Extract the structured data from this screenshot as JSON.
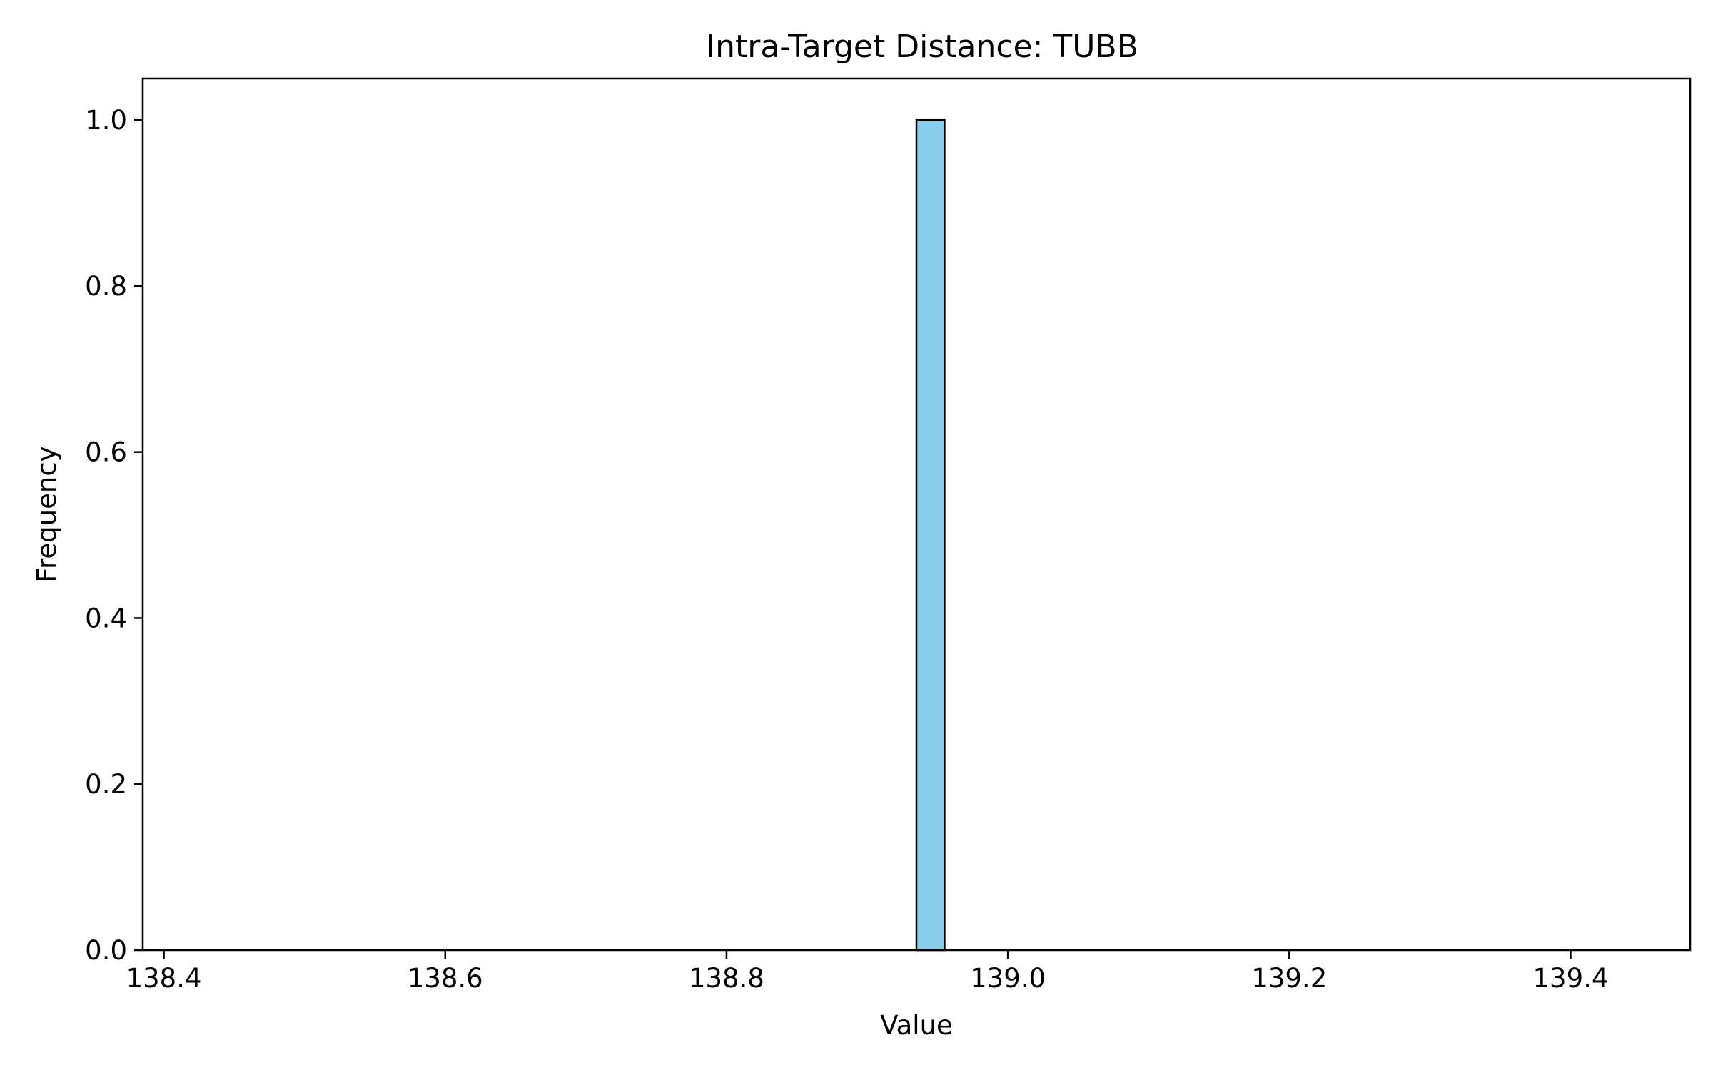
{
  "chart_data": {
    "type": "bar",
    "title": "Intra-Target Distance: TUBB",
    "xlabel": "Value",
    "ylabel": "Frequency",
    "xlim": [
      138.385,
      139.485
    ],
    "ylim": [
      0,
      1.05
    ],
    "xticks": [
      138.4,
      138.6,
      138.8,
      139.0,
      139.2,
      139.4
    ],
    "xtick_labels": [
      "138.4",
      "138.6",
      "138.8",
      "139.0",
      "139.2",
      "139.4"
    ],
    "yticks": [
      0.0,
      0.2,
      0.4,
      0.6,
      0.8,
      1.0
    ],
    "ytick_labels": [
      "0.0",
      "0.2",
      "0.4",
      "0.6",
      "0.8",
      "1.0"
    ],
    "bins": {
      "start": 138.435,
      "end": 139.435,
      "count": 50
    },
    "bars": [
      {
        "x0": 138.935,
        "x1": 138.955,
        "value": 1
      }
    ],
    "grid": false,
    "colors": {
      "bar_fill": "#87ceeb",
      "bar_edge": "#000000"
    }
  }
}
